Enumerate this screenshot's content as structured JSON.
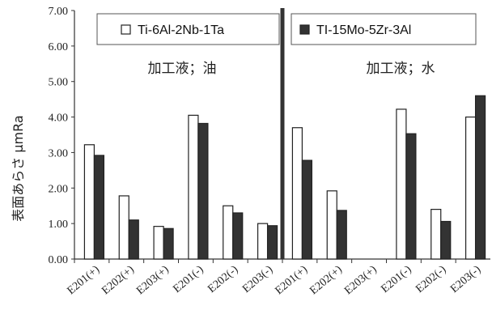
{
  "chart_data": {
    "type": "bar",
    "ylabel": "表面あらさ μmRa",
    "ylim": [
      0,
      7
    ],
    "yticks": [
      "0.00",
      "1.00",
      "2.00",
      "3.00",
      "4.00",
      "5.00",
      "6.00",
      "7.00"
    ],
    "categories": [
      "E201(+)",
      "E202(+)",
      "E203(+)",
      "E201(-)",
      "E202(-)",
      "E203(-)",
      "E201(+)",
      "E202(+)",
      "E203(+)",
      "E201(-)",
      "E202(-)",
      "E203(-)"
    ],
    "series": [
      {
        "name": "Ti-6Al-2Nb-1Ta",
        "color": "#ffffff",
        "values": [
          3.22,
          1.78,
          0.92,
          4.05,
          1.5,
          1.0,
          3.7,
          1.92,
          null,
          4.22,
          1.4,
          4.0
        ]
      },
      {
        "name": "TI-15Mo-5Zr-3Al",
        "color": "#333333",
        "values": [
          2.92,
          1.1,
          0.86,
          3.82,
          1.3,
          0.94,
          2.78,
          1.37,
          null,
          3.53,
          1.06,
          4.6
        ]
      }
    ],
    "panels": [
      {
        "label": "加工液；油",
        "categories": [
          "E201(+)",
          "E202(+)",
          "E203(+)",
          "E201(-)",
          "E202(-)",
          "E203(-)"
        ]
      },
      {
        "label": "加工液；水",
        "categories": [
          "E201(+)",
          "E202(+)",
          "E203(+)",
          "E201(-)",
          "E202(-)",
          "E203(-)"
        ]
      }
    ],
    "grid": false,
    "legend": "top"
  }
}
